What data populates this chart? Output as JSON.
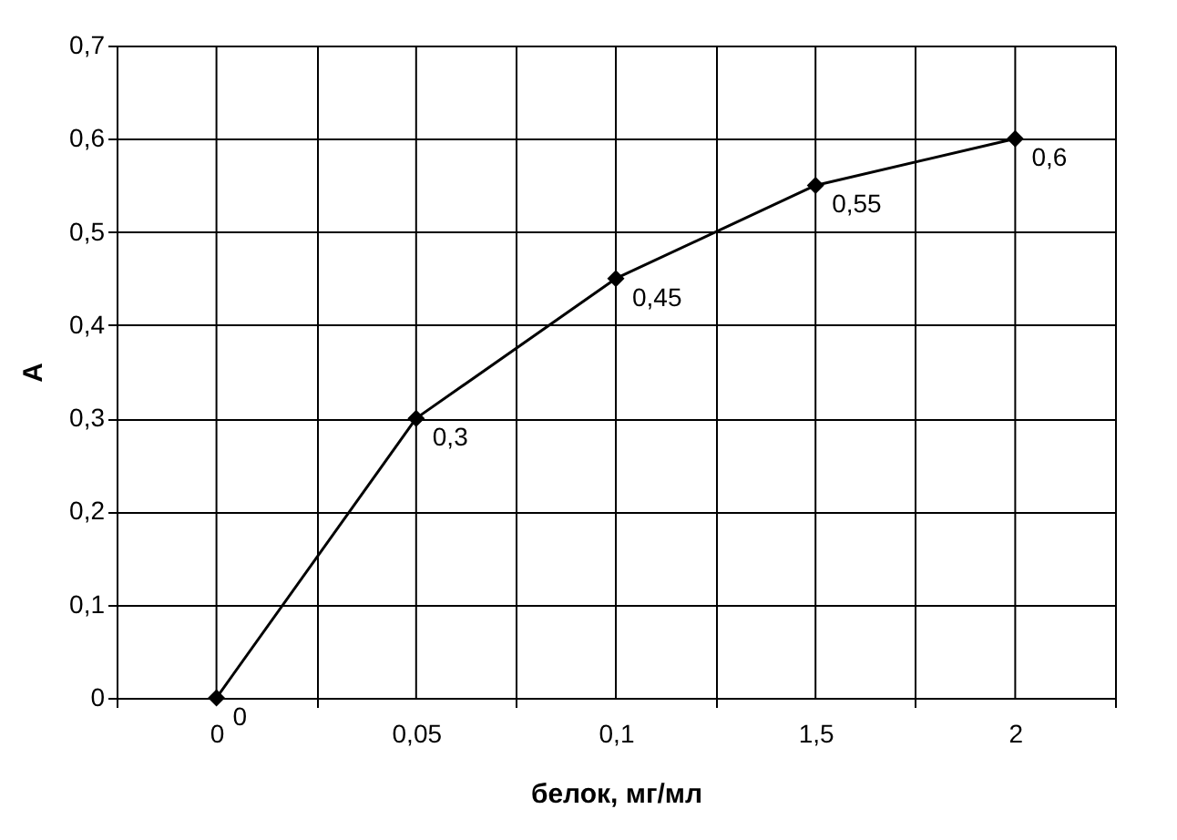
{
  "chart_data": {
    "type": "line",
    "categories": [
      "0",
      "0,05",
      "0,1",
      "1,5",
      "2"
    ],
    "series": [
      {
        "color": "#000000",
        "values": [
          0,
          0.3,
          0.45,
          0.55,
          0.6
        ],
        "value_labels": [
          "0",
          "0,3",
          "0,45",
          "0,55",
          "0,6"
        ]
      }
    ],
    "xlabel": "белок, мг/мл",
    "ylabel": "A",
    "ylim": [
      0,
      0.7
    ],
    "yticks": [
      0,
      {
        "value": 0.1,
        "label": "0,1"
      },
      {
        "value": 0.2,
        "label": "0,2"
      },
      {
        "value": 0.3,
        "label": "0,3"
      },
      {
        "value": 0.4,
        "label": "0,4"
      },
      {
        "value": 0.5,
        "label": "0,5"
      },
      {
        "value": 0.6,
        "label": "0,6"
      },
      {
        "value": 0.7,
        "label": "0,7"
      }
    ],
    "grid": true,
    "marker": "diamond",
    "line_style": "solid"
  }
}
